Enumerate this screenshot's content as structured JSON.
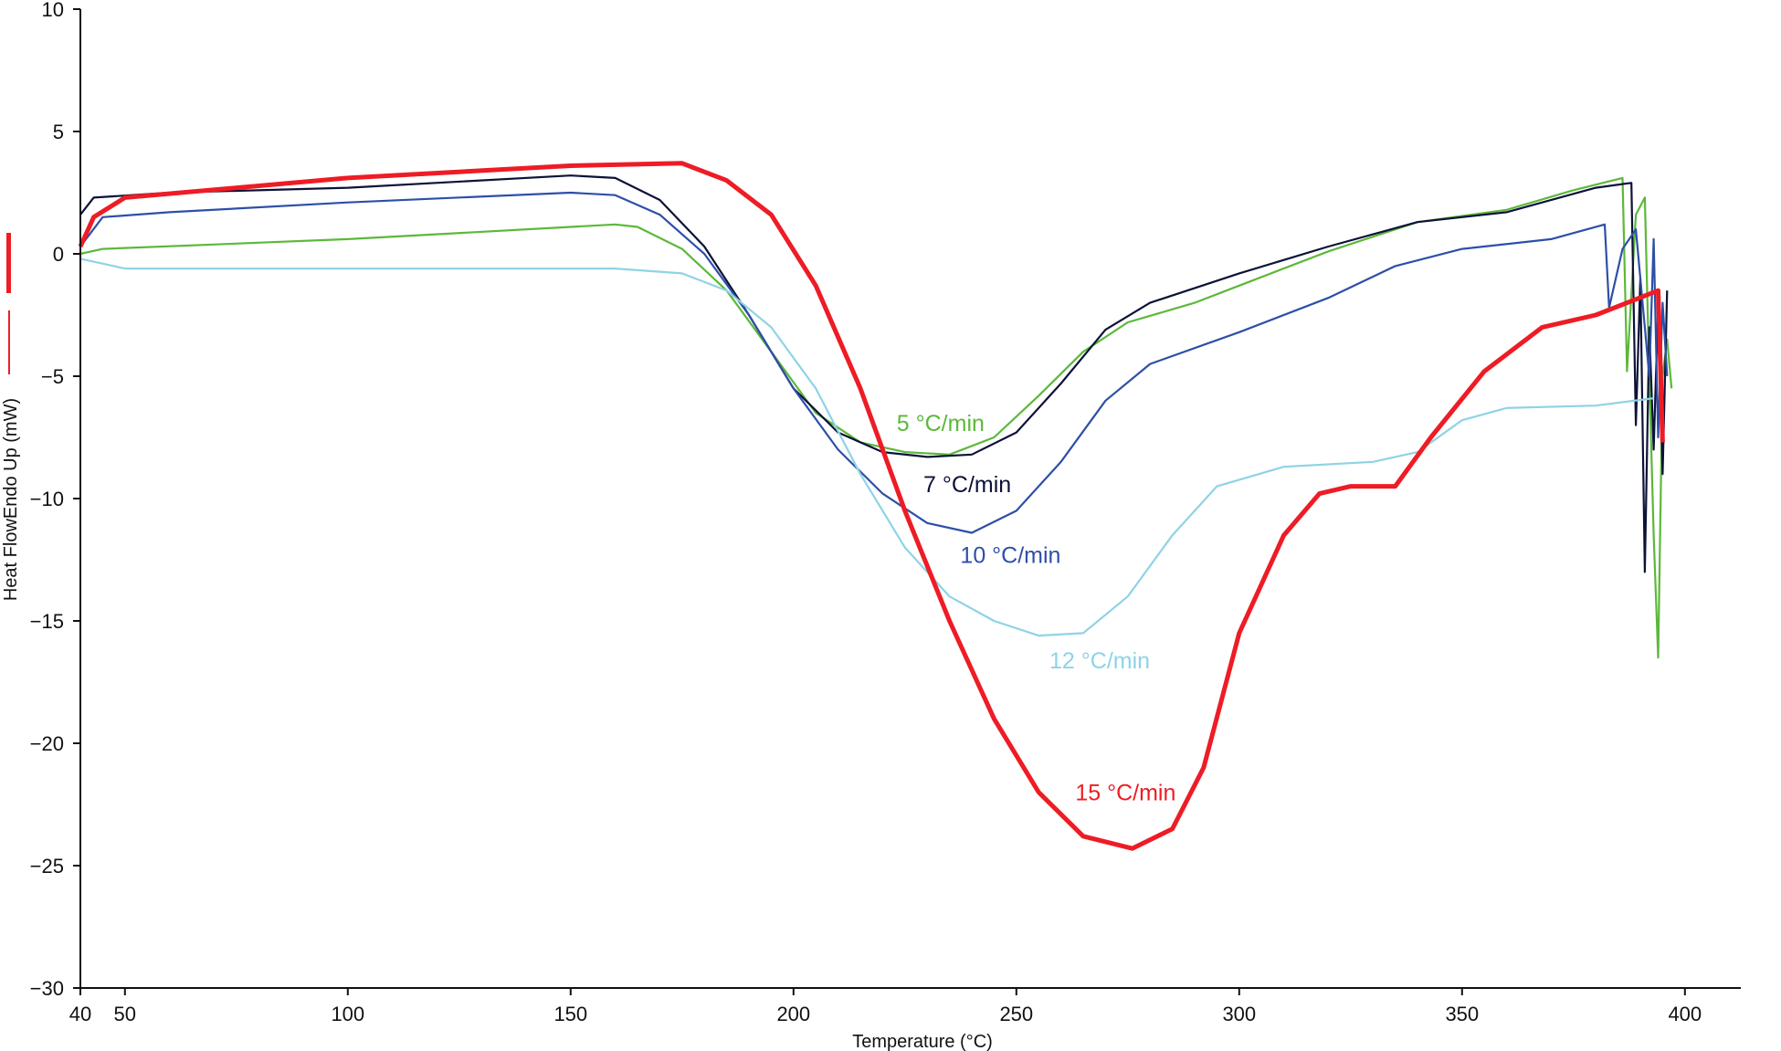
{
  "chart_data": {
    "type": "line",
    "title": "",
    "xlabel": "Temperature (°C)",
    "ylabel": "Heat FlowEndo Up (mW)",
    "xlim": [
      40,
      400
    ],
    "ylim": [
      -30,
      10
    ],
    "xticks": [
      "40",
      "50",
      "100",
      "150",
      "200",
      "250",
      "300",
      "350",
      "400"
    ],
    "xtick_values": [
      40,
      50,
      100,
      150,
      200,
      250,
      300,
      350,
      400
    ],
    "yticks": [
      "10",
      "5",
      "0",
      "−05",
      "−10",
      "−15",
      "−20",
      "−25",
      "−30"
    ],
    "ytick_labels": [
      "10",
      "5",
      "0",
      "−5",
      "−10",
      "−15",
      "−20",
      "−25",
      "−30"
    ],
    "ytick_values": [
      10,
      5,
      0,
      -5,
      -10,
      -15,
      -20,
      -25,
      -30
    ],
    "grid": false,
    "series": [
      {
        "name": "5 °C/min",
        "color": "#5cb83a",
        "label_at": [
          233,
          -6.9
        ],
        "x": [
          40,
          45,
          100,
          150,
          160,
          165,
          175,
          185,
          195,
          205,
          215,
          225,
          235,
          245,
          255,
          265,
          275,
          290,
          300,
          320,
          340,
          360,
          375,
          386,
          387,
          389,
          391,
          392,
          393,
          394,
          395,
          396,
          397
        ],
        "y": [
          0,
          0.2,
          0.6,
          1.1,
          1.2,
          1.1,
          0.2,
          -1.5,
          -4,
          -6.5,
          -7.7,
          -8.1,
          -8.2,
          -7.5,
          -5.8,
          -4,
          -2.8,
          -2,
          -1.3,
          0.1,
          1.3,
          1.8,
          2.6,
          3.1,
          -4.8,
          1.6,
          2.3,
          -5,
          -11.5,
          -16.5,
          -5,
          -3.5,
          -5.5
        ]
      },
      {
        "name": "7 °C/min",
        "color": "#0d1238",
        "label_at": [
          239,
          -9.4
        ],
        "x": [
          40,
          43,
          60,
          100,
          150,
          160,
          170,
          180,
          190,
          200,
          210,
          220,
          230,
          240,
          250,
          260,
          270,
          280,
          300,
          320,
          340,
          360,
          380,
          388,
          389,
          390,
          391,
          392,
          393,
          394,
          395,
          396
        ],
        "y": [
          1.6,
          2.3,
          2.5,
          2.7,
          3.2,
          3.1,
          2.2,
          0.3,
          -2.5,
          -5.5,
          -7.3,
          -8.1,
          -8.3,
          -8.2,
          -7.3,
          -5.3,
          -3.1,
          -2.0,
          -0.8,
          0.3,
          1.3,
          1.7,
          2.7,
          2.9,
          -7,
          -1,
          -13,
          -3,
          -8,
          -2,
          -9,
          -1.5
        ]
      },
      {
        "name": "10 °C/min",
        "color": "#2e4fa8",
        "label_at": [
          248.7,
          -12.3
        ],
        "x": [
          40,
          45,
          60,
          100,
          150,
          160,
          170,
          180,
          190,
          200,
          210,
          220,
          230,
          240,
          250,
          260,
          270,
          280,
          300,
          320,
          335,
          350,
          370,
          382,
          383,
          386,
          389,
          390,
          392,
          393,
          394,
          395,
          396
        ],
        "y": [
          0.3,
          1.5,
          1.7,
          2.1,
          2.5,
          2.4,
          1.6,
          0,
          -2.5,
          -5.5,
          -8,
          -9.8,
          -11,
          -11.4,
          -10.5,
          -8.5,
          -6,
          -4.5,
          -3.2,
          -1.8,
          -0.5,
          0.2,
          0.6,
          1.2,
          -2.2,
          0.2,
          1.0,
          -1,
          -5,
          0.6,
          -7.5,
          -2,
          -5
        ]
      },
      {
        "name": "12 °C/min",
        "color": "#8fd3e6",
        "label_at": [
          268.7,
          -16.6
        ],
        "x": [
          40,
          50,
          100,
          160,
          175,
          185,
          195,
          205,
          215,
          225,
          235,
          245,
          255,
          265,
          275,
          285,
          295,
          310,
          330,
          340,
          350,
          360,
          380,
          393
        ],
        "y": [
          -0.2,
          -0.6,
          -0.6,
          -0.6,
          -0.8,
          -1.5,
          -3,
          -5.5,
          -9,
          -12,
          -14,
          -15,
          -15.6,
          -15.5,
          -14,
          -11.5,
          -9.5,
          -8.7,
          -8.5,
          -8.1,
          -6.8,
          -6.3,
          -6.2,
          -5.9
        ]
      },
      {
        "name": "15 °C/min",
        "color": "#ee1c25",
        "label_at": [
          274.5,
          -22
        ],
        "x": [
          40,
          43,
          50,
          100,
          150,
          175,
          185,
          195,
          205,
          215,
          225,
          235,
          245,
          255,
          265,
          276,
          285,
          292,
          300,
          310,
          318,
          325,
          335,
          343,
          355,
          368,
          380,
          394,
          395
        ],
        "y": [
          0.3,
          1.5,
          2.3,
          3.1,
          3.6,
          3.7,
          3.0,
          1.6,
          -1.3,
          -5.5,
          -10.5,
          -15,
          -19,
          -22,
          -23.8,
          -24.3,
          -23.5,
          -21,
          -15.5,
          -11.5,
          -9.8,
          -9.5,
          -9.5,
          -7.5,
          -4.8,
          -3,
          -2.5,
          -1.5,
          -7.7
        ]
      }
    ]
  }
}
